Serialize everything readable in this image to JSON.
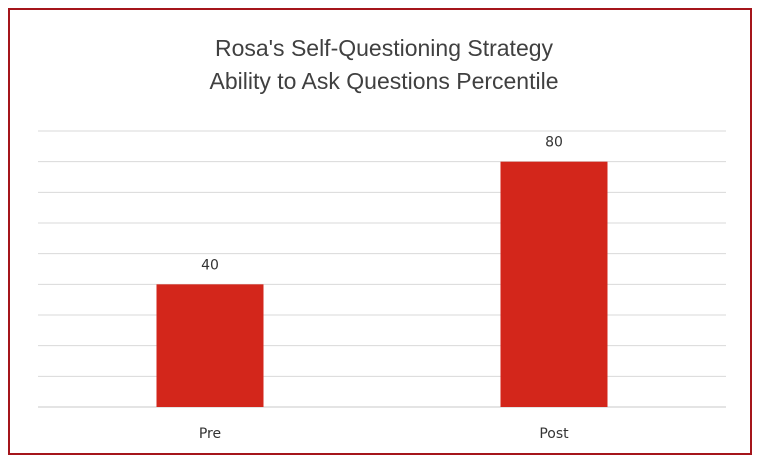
{
  "chart_data": {
    "type": "bar",
    "title_lines": [
      "Rosa's Self-Questioning Strategy",
      "Ability to Ask Questions Percentile"
    ],
    "categories": [
      "Pre",
      "Post"
    ],
    "values": [
      40,
      80
    ],
    "data_labels": [
      "40",
      "80"
    ],
    "ylim": [
      0,
      90
    ],
    "grid": true,
    "y_axis_labels_shown": false,
    "legend": "none",
    "bar_color": "#d3261b",
    "frame_color": "#a5151b"
  }
}
